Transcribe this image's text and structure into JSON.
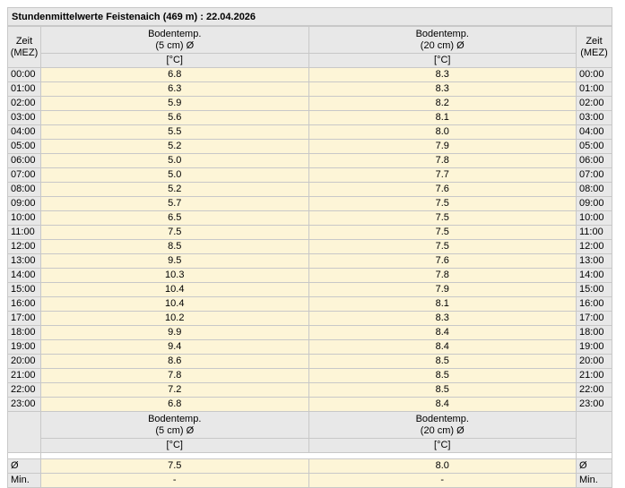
{
  "title": "Stundenmittelwerte Feistenaich (469 m) : 22.04.2026",
  "time_header": [
    "Zeit",
    "(MEZ)"
  ],
  "columns": [
    {
      "line1": "Bodentemp.",
      "line2": "(5 cm) Ø",
      "unit": "[°C]"
    },
    {
      "line1": "Bodentemp.",
      "line2": "(20 cm) Ø",
      "unit": "[°C]"
    }
  ],
  "rows": [
    {
      "time": "00:00",
      "v5": "6.8",
      "v20": "8.3"
    },
    {
      "time": "01:00",
      "v5": "6.3",
      "v20": "8.3"
    },
    {
      "time": "02:00",
      "v5": "5.9",
      "v20": "8.2"
    },
    {
      "time": "03:00",
      "v5": "5.6",
      "v20": "8.1"
    },
    {
      "time": "04:00",
      "v5": "5.5",
      "v20": "8.0"
    },
    {
      "time": "05:00",
      "v5": "5.2",
      "v20": "7.9"
    },
    {
      "time": "06:00",
      "v5": "5.0",
      "v20": "7.8"
    },
    {
      "time": "07:00",
      "v5": "5.0",
      "v20": "7.7"
    },
    {
      "time": "08:00",
      "v5": "5.2",
      "v20": "7.6"
    },
    {
      "time": "09:00",
      "v5": "5.7",
      "v20": "7.5"
    },
    {
      "time": "10:00",
      "v5": "6.5",
      "v20": "7.5"
    },
    {
      "time": "11:00",
      "v5": "7.5",
      "v20": "7.5"
    },
    {
      "time": "12:00",
      "v5": "8.5",
      "v20": "7.5"
    },
    {
      "time": "13:00",
      "v5": "9.5",
      "v20": "7.6"
    },
    {
      "time": "14:00",
      "v5": "10.3",
      "v20": "7.8"
    },
    {
      "time": "15:00",
      "v5": "10.4",
      "v20": "7.9"
    },
    {
      "time": "16:00",
      "v5": "10.4",
      "v20": "8.1"
    },
    {
      "time": "17:00",
      "v5": "10.2",
      "v20": "8.3"
    },
    {
      "time": "18:00",
      "v5": "9.9",
      "v20": "8.4"
    },
    {
      "time": "19:00",
      "v5": "9.4",
      "v20": "8.4"
    },
    {
      "time": "20:00",
      "v5": "8.6",
      "v20": "8.5"
    },
    {
      "time": "21:00",
      "v5": "7.8",
      "v20": "8.5"
    },
    {
      "time": "22:00",
      "v5": "7.2",
      "v20": "8.5"
    },
    {
      "time": "23:00",
      "v5": "6.8",
      "v20": "8.4"
    }
  ],
  "summary": [
    {
      "label": "Ø",
      "v5": "7.5",
      "v20": "8.0"
    },
    {
      "label": "Min.",
      "v5": "-",
      "v20": "-"
    }
  ]
}
